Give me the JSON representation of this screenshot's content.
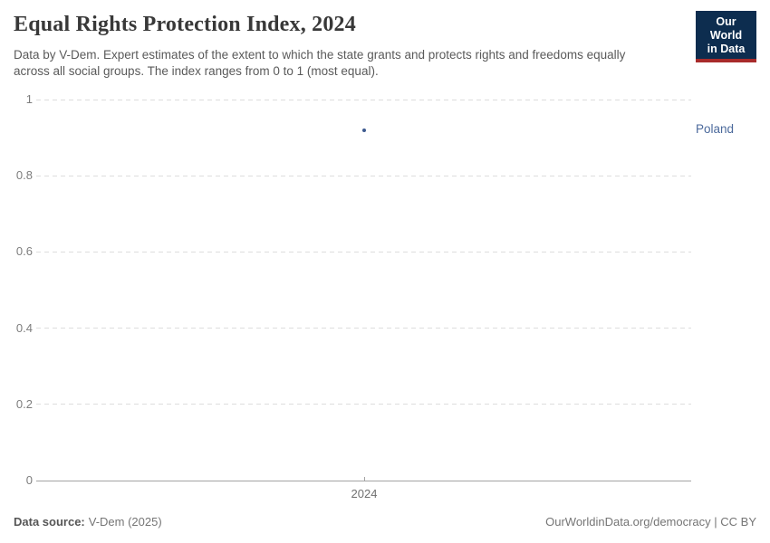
{
  "header": {
    "title": "Equal Rights Protection Index, 2024",
    "subtitle": "Data by V-Dem. Expert estimates of the extent to which the state grants and protects rights and freedoms equally across all social groups. The index ranges from 0 to 1 (most equal).",
    "logo_line1": "Our World",
    "logo_line2": "in Data"
  },
  "chart_data": {
    "type": "scatter",
    "title": "Equal Rights Protection Index, 2024",
    "x": [
      2024
    ],
    "x_tick_labels": [
      "2024"
    ],
    "series": [
      {
        "name": "Poland",
        "values": [
          0.92
        ],
        "color": "#4c6a9c",
        "point_color": "#3d5a8f"
      }
    ],
    "ylim": [
      0,
      1
    ],
    "y_ticks": [
      "0",
      "0.2",
      "0.4",
      "0.6",
      "0.8",
      "1"
    ],
    "grid": "horizontal-dashed",
    "legend_position": "right-entity-label",
    "xlabel": "",
    "ylabel": ""
  },
  "footer": {
    "source_label": "Data source:",
    "source_value": "V-Dem (2025)",
    "credit": "OurWorldinData.org/democracy | CC BY"
  },
  "colors": {
    "grid": "#dddddd",
    "axis": "#a3a3a3",
    "y_tick_text": "#7d7d7d",
    "x_tick_text": "#6f6f6f",
    "logo_bg": "#0d2d4f",
    "logo_red": "#a82b2b",
    "title_text": "#383838",
    "subtitle_text": "#5a5a5a"
  }
}
